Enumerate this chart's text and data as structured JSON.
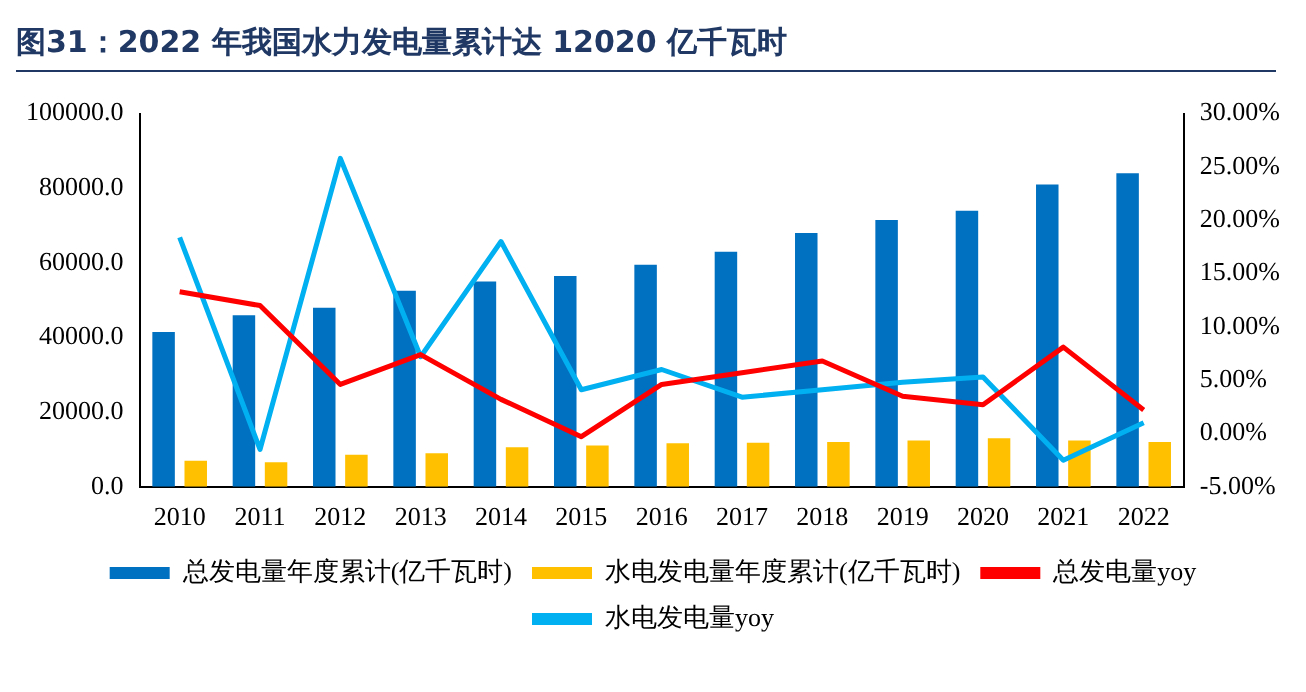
{
  "chart_data": {
    "type": "bar",
    "title": "图31：2022 年我国水力发电量累计达 12020 亿千瓦时",
    "categories": [
      "2010",
      "2011",
      "2012",
      "2013",
      "2014",
      "2015",
      "2016",
      "2017",
      "2018",
      "2019",
      "2020",
      "2021",
      "2022"
    ],
    "series": [
      {
        "name": "总发电量年度累计(亿千瓦时)",
        "color": "#0070c0",
        "values": [
          41500,
          46000,
          48000,
          52500,
          55000,
          56500,
          59500,
          63000,
          68000,
          71500,
          74000,
          81000,
          84000
        ]
      },
      {
        "name": "水电发电量年度累计(亿千瓦时)",
        "color": "#ffc000",
        "values": [
          7000,
          6600,
          8600,
          9000,
          10600,
          11100,
          11700,
          11800,
          12000,
          12400,
          13000,
          12400,
          12000
        ]
      },
      {
        "name": "总发电量yoy",
        "type": "line",
        "axis": "y2",
        "color": "#ff0000",
        "values": [
          13.3,
          12.0,
          4.6,
          7.4,
          3.2,
          -0.3,
          4.6,
          5.7,
          6.8,
          3.5,
          2.7,
          8.1,
          2.2
        ]
      },
      {
        "name": "水电发电量yoy",
        "type": "line",
        "axis": "y2",
        "color": "#00b0f0",
        "values": [
          18.4,
          -1.5,
          25.8,
          7.2,
          18.0,
          4.1,
          6.0,
          3.4,
          4.1,
          4.8,
          5.3,
          -2.5,
          1.0
        ]
      }
    ],
    "ylim": [
      0,
      100000
    ],
    "yticks": [
      {
        "value": 0,
        "label": "0.0"
      },
      {
        "value": 20000,
        "label": "20000.0"
      },
      {
        "value": 40000,
        "label": "40000.0"
      },
      {
        "value": 60000,
        "label": "60000.0"
      },
      {
        "value": 80000,
        "label": "80000.0"
      },
      {
        "value": 100000,
        "label": "100000.0"
      }
    ],
    "y2lim": [
      -5,
      30
    ],
    "y2ticks": [
      {
        "value": -5,
        "label": "-5.00%"
      },
      {
        "value": 0,
        "label": "0.00%"
      },
      {
        "value": 5,
        "label": "5.00%"
      },
      {
        "value": 10,
        "label": "10.00%"
      },
      {
        "value": 15,
        "label": "15.00%"
      },
      {
        "value": 20,
        "label": "20.00%"
      },
      {
        "value": 25,
        "label": "25.00%"
      },
      {
        "value": 30,
        "label": "30.00%"
      }
    ],
    "grid": false,
    "legend": "bottom"
  }
}
